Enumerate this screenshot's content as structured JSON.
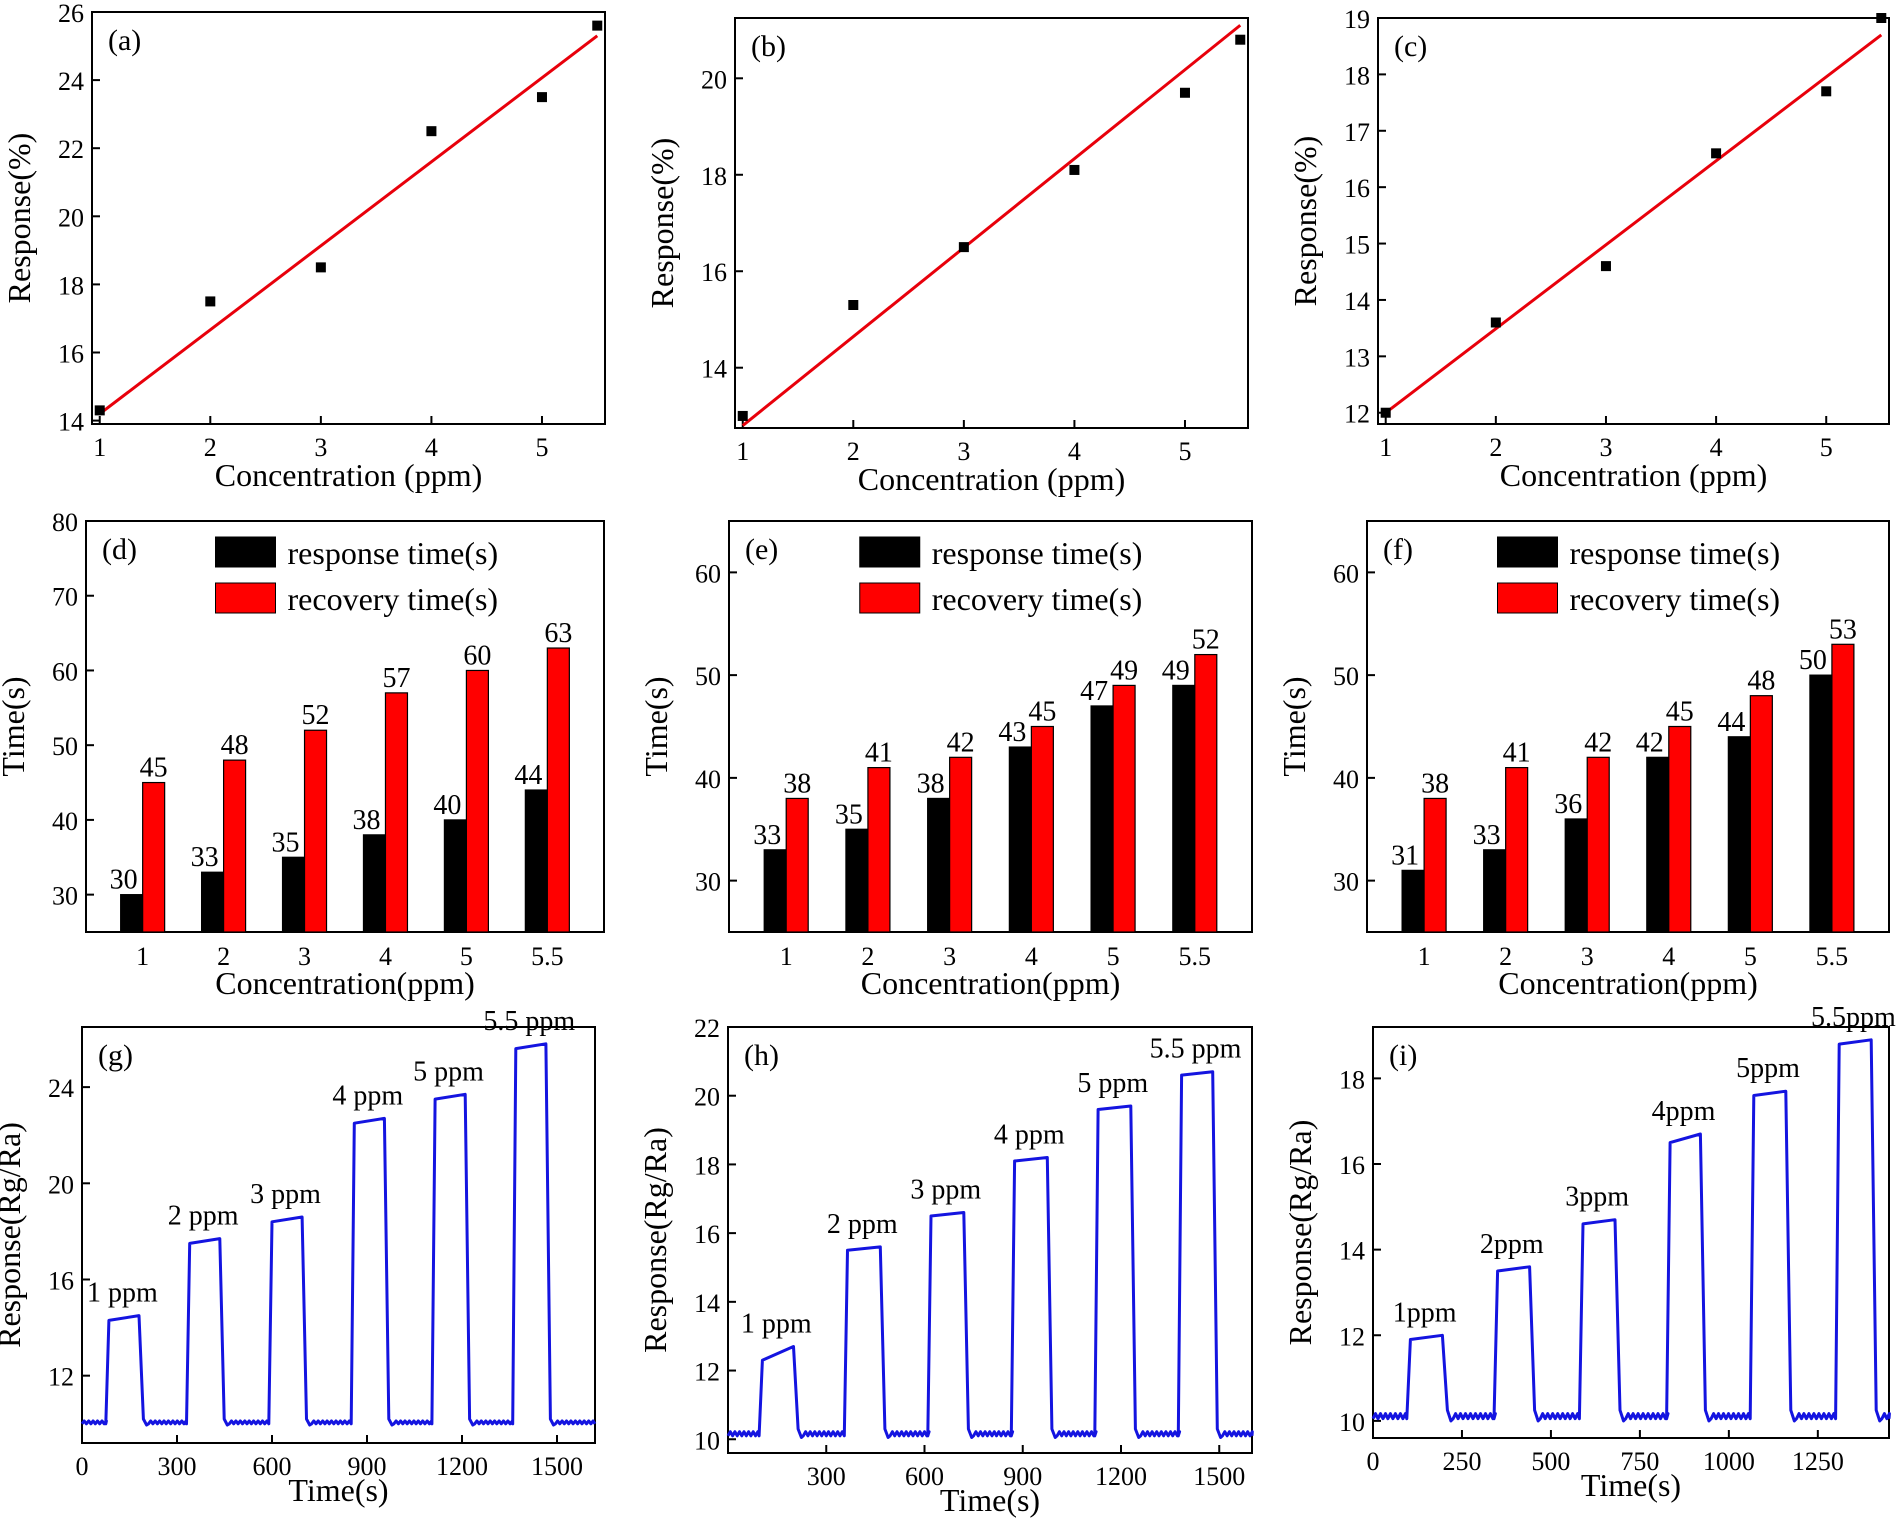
{
  "colors": {
    "fit_line": "#e8000b",
    "scatter": "#000000",
    "response_bar": "#000000",
    "recovery_bar": "#ff0000",
    "curve": "#1414e0",
    "axis": "#000000"
  },
  "chart_data": [
    {
      "type": "scatter",
      "panel": "(a)",
      "xlabel": "Concentration (ppm)",
      "ylabel": "Response(%)",
      "xlim": [
        0.93,
        5.57
      ],
      "ylim": [
        13.9,
        26.0
      ],
      "xticks": [
        1,
        2,
        3,
        4,
        5
      ],
      "yticks": [
        14,
        16,
        18,
        20,
        22,
        24,
        26
      ],
      "points": [
        [
          1,
          14.3
        ],
        [
          2,
          17.5
        ],
        [
          3,
          18.5
        ],
        [
          4,
          22.5
        ],
        [
          5,
          23.5
        ],
        [
          5.5,
          25.6
        ]
      ],
      "fit": [
        [
          1,
          14.2
        ],
        [
          5.5,
          25.3
        ]
      ]
    },
    {
      "type": "scatter",
      "panel": "(b)",
      "xlabel": "Concentration (ppm)",
      "ylabel": "Response(%)",
      "xlim": [
        0.93,
        5.57
      ],
      "ylim": [
        12.75,
        21.25
      ],
      "xticks": [
        1,
        2,
        3,
        4,
        5
      ],
      "yticks": [
        14,
        16,
        18,
        20
      ],
      "points": [
        [
          1,
          13.0
        ],
        [
          2,
          15.3
        ],
        [
          3,
          16.5
        ],
        [
          4,
          18.1
        ],
        [
          5,
          19.7
        ],
        [
          5.5,
          20.8
        ]
      ],
      "fit": [
        [
          1,
          12.8
        ],
        [
          5.5,
          21.1
        ]
      ]
    },
    {
      "type": "scatter",
      "panel": "(c)",
      "xlabel": "Concentration (ppm)",
      "ylabel": "Response(%)",
      "xlim": [
        0.93,
        5.57
      ],
      "ylim": [
        11.8,
        19.0
      ],
      "xticks": [
        1,
        2,
        3,
        4,
        5
      ],
      "yticks": [
        12,
        13,
        14,
        15,
        16,
        17,
        18,
        19
      ],
      "points": [
        [
          1,
          12.0
        ],
        [
          2,
          13.6
        ],
        [
          3,
          14.6
        ],
        [
          4,
          16.6
        ],
        [
          5,
          17.7
        ],
        [
          5.5,
          19.0
        ]
      ],
      "fit": [
        [
          1,
          12.0
        ],
        [
          5.5,
          18.7
        ]
      ]
    },
    {
      "type": "bar",
      "panel": "(d)",
      "xlabel": "Concentration(ppm)",
      "ylabel": "Time(s)",
      "ylim": [
        25,
        80
      ],
      "yticks": [
        30,
        40,
        50,
        60,
        70,
        80
      ],
      "categories": [
        "1",
        "2",
        "3",
        "4",
        "5",
        "5.5"
      ],
      "series": [
        {
          "name": "response time(s)",
          "values": [
            30,
            33,
            35,
            38,
            40,
            44
          ]
        },
        {
          "name": "recovery time(s)",
          "values": [
            45,
            48,
            52,
            57,
            60,
            63
          ]
        }
      ]
    },
    {
      "type": "bar",
      "panel": "(e)",
      "xlabel": "Concentration(ppm)",
      "ylabel": "Time(s)",
      "ylim": [
        25,
        65
      ],
      "yticks": [
        30,
        40,
        50,
        60
      ],
      "categories": [
        "1",
        "2",
        "3",
        "4",
        "5",
        "5.5"
      ],
      "series": [
        {
          "name": "response time(s)",
          "values": [
            33,
            35,
            38,
            43,
            47,
            49
          ]
        },
        {
          "name": "recovery time(s)",
          "values": [
            38,
            41,
            42,
            45,
            49,
            52
          ]
        }
      ]
    },
    {
      "type": "bar",
      "panel": "(f)",
      "xlabel": "Concentration(ppm)",
      "ylabel": "Time(s)",
      "ylim": [
        25,
        65
      ],
      "yticks": [
        30,
        40,
        50,
        60
      ],
      "categories": [
        "1",
        "2",
        "3",
        "4",
        "5",
        "5.5"
      ],
      "series": [
        {
          "name": "response time(s)",
          "values": [
            31,
            33,
            36,
            42,
            44,
            50
          ]
        },
        {
          "name": "recovery time(s)",
          "values": [
            38,
            41,
            42,
            45,
            48,
            53
          ]
        }
      ]
    },
    {
      "type": "line",
      "panel": "(g)",
      "xlabel": "Time(s)",
      "ylabel": "Response(Rg/Ra)",
      "xlim": [
        0,
        1620
      ],
      "ylim": [
        9.2,
        26.5
      ],
      "xticks": [
        0,
        300,
        600,
        900,
        1200,
        1500
      ],
      "yticks": [
        12,
        16,
        20,
        24
      ],
      "baseline": 10.0,
      "pulses": [
        {
          "start": 75,
          "end": 180,
          "y0": 14.3,
          "y1": 14.5,
          "label": "1 ppm"
        },
        {
          "start": 330,
          "end": 435,
          "y0": 17.5,
          "y1": 17.7,
          "label": "2 ppm"
        },
        {
          "start": 590,
          "end": 695,
          "y0": 18.4,
          "y1": 18.6,
          "label": "3 ppm"
        },
        {
          "start": 850,
          "end": 955,
          "y0": 22.5,
          "y1": 22.7,
          "label": "4 ppm"
        },
        {
          "start": 1105,
          "end": 1210,
          "y0": 23.5,
          "y1": 23.7,
          "label": "5 ppm"
        },
        {
          "start": 1360,
          "end": 1465,
          "y0": 25.6,
          "y1": 25.8,
          "label": "5.5 ppm"
        }
      ]
    },
    {
      "type": "line",
      "panel": "(h)",
      "xlabel": "Time(s)",
      "ylabel": "Response(Rg/Ra)",
      "xlim": [
        0,
        1600
      ],
      "ylim": [
        9.6,
        22
      ],
      "xticks": [
        300,
        600,
        900,
        1200,
        1500
      ],
      "yticks": [
        10,
        12,
        14,
        16,
        18,
        20,
        22
      ],
      "baseline": 10.1,
      "pulses": [
        {
          "start": 95,
          "end": 200,
          "y0": 12.3,
          "y1": 12.7,
          "label": "1 ppm"
        },
        {
          "start": 355,
          "end": 465,
          "y0": 15.5,
          "y1": 15.6,
          "label": "2 ppm"
        },
        {
          "start": 610,
          "end": 720,
          "y0": 16.5,
          "y1": 16.6,
          "label": "3 ppm"
        },
        {
          "start": 865,
          "end": 975,
          "y0": 18.1,
          "y1": 18.2,
          "label": "4 ppm"
        },
        {
          "start": 1120,
          "end": 1230,
          "y0": 19.6,
          "y1": 19.7,
          "label": "5 ppm"
        },
        {
          "start": 1375,
          "end": 1480,
          "y0": 20.6,
          "y1": 20.7,
          "label": "5.5 ppm"
        }
      ]
    },
    {
      "type": "line",
      "panel": "(i)",
      "xlabel": "Time(s)",
      "ylabel": "Response(Rg/Ra)",
      "xlim": [
        0,
        1450
      ],
      "ylim": [
        9.6,
        19.2
      ],
      "xticks": [
        0,
        250,
        500,
        750,
        1000,
        1250
      ],
      "yticks": [
        10,
        12,
        14,
        16,
        18
      ],
      "baseline": 10.05,
      "pulses": [
        {
          "start": 95,
          "end": 195,
          "y0": 11.9,
          "y1": 12.0,
          "label": "1ppm"
        },
        {
          "start": 340,
          "end": 440,
          "y0": 13.5,
          "y1": 13.6,
          "label": "2ppm"
        },
        {
          "start": 580,
          "end": 680,
          "y0": 14.6,
          "y1": 14.7,
          "label": "3ppm"
        },
        {
          "start": 825,
          "end": 920,
          "y0": 16.5,
          "y1": 16.7,
          "label": "4ppm"
        },
        {
          "start": 1060,
          "end": 1160,
          "y0": 17.6,
          "y1": 17.7,
          "label": "5ppm"
        },
        {
          "start": 1300,
          "end": 1400,
          "y0": 18.8,
          "y1": 18.9,
          "label": "5.5ppm"
        }
      ]
    }
  ]
}
